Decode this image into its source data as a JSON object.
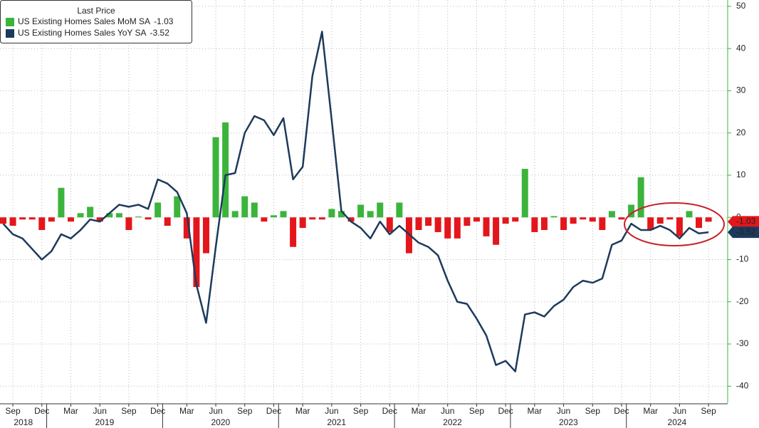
{
  "chart_data": {
    "type": "bar_line",
    "legend_title": "Last Price",
    "x": [
      "2018-08",
      "2018-09",
      "2018-10",
      "2018-11",
      "2018-12",
      "2019-01",
      "2019-02",
      "2019-03",
      "2019-04",
      "2019-05",
      "2019-06",
      "2019-07",
      "2019-08",
      "2019-09",
      "2019-10",
      "2019-11",
      "2019-12",
      "2020-01",
      "2020-02",
      "2020-03",
      "2020-04",
      "2020-05",
      "2020-06",
      "2020-07",
      "2020-08",
      "2020-09",
      "2020-10",
      "2020-11",
      "2020-12",
      "2021-01",
      "2021-02",
      "2021-03",
      "2021-04",
      "2021-05",
      "2021-06",
      "2021-07",
      "2021-08",
      "2021-09",
      "2021-10",
      "2021-11",
      "2021-12",
      "2022-01",
      "2022-02",
      "2022-03",
      "2022-04",
      "2022-05",
      "2022-06",
      "2022-07",
      "2022-08",
      "2022-09",
      "2022-10",
      "2022-11",
      "2022-12",
      "2023-01",
      "2023-02",
      "2023-03",
      "2023-04",
      "2023-05",
      "2023-06",
      "2023-07",
      "2023-08",
      "2023-09",
      "2023-10",
      "2023-11",
      "2023-12",
      "2024-01",
      "2024-02",
      "2024-03",
      "2024-04",
      "2024-05",
      "2024-06",
      "2024-07",
      "2024-08",
      "2024-09"
    ],
    "series": [
      {
        "name": "US Existing Homes Sales MoM SA",
        "kind": "bar",
        "color": "#3cb43c",
        "negative_color": "#e3171b",
        "values": [
          -1.5,
          -2,
          -0.5,
          -0.5,
          -3,
          -1,
          7,
          -1,
          1,
          2.5,
          -1,
          1,
          1,
          -3,
          0.2,
          -0.5,
          3.5,
          -2,
          5,
          -5,
          -16.5,
          -8.5,
          19,
          22.5,
          1.5,
          5,
          3.5,
          -1,
          0.5,
          1.5,
          -7,
          -2.5,
          -0.5,
          -0.5,
          2,
          1.5,
          -1,
          3,
          1.5,
          3.5,
          -3.5,
          3.5,
          -8.5,
          -3,
          -2,
          -3.5,
          -5,
          -5,
          -2,
          -1,
          -4.5,
          -6.5,
          -1.5,
          -1,
          11.5,
          -3.5,
          -3,
          0.3,
          -3,
          -1.5,
          -0.5,
          -1,
          -3,
          1.5,
          -0.5,
          3,
          9.5,
          -3,
          -1.5,
          -0.5,
          -4.5,
          1.5,
          -2.5,
          -1.03
        ]
      },
      {
        "name": "US Existing Homes Sales YoY SA",
        "kind": "line",
        "color": "#1d3a5c",
        "values": [
          -1.5,
          -4,
          -5,
          -7.5,
          -10,
          -8,
          -4,
          -5,
          -3,
          -0.5,
          -1,
          1,
          3,
          2.5,
          3,
          2,
          9,
          8,
          6,
          1,
          -16,
          -25,
          -7,
          10,
          10.5,
          20,
          24,
          23,
          19.5,
          23.5,
          9,
          12,
          33.5,
          44,
          23,
          1.5,
          -1,
          -2.5,
          -5,
          -1,
          -4,
          -2,
          -4,
          -6,
          -7,
          -9,
          -15,
          -20,
          -20.5,
          -24,
          -28,
          -35,
          -34,
          -36.5,
          -23,
          -22.5,
          -23.5,
          -21,
          -19.5,
          -16.5,
          -15,
          -15.5,
          -14.5,
          -6.5,
          -5.5,
          -1.5,
          -3,
          -3,
          -2,
          -3,
          -5,
          -2.5,
          -3.8,
          -3.52
        ]
      }
    ],
    "ylim": [
      -44,
      51.5
    ],
    "yticks": [
      50,
      40,
      30,
      20,
      10,
      0,
      -10,
      -20,
      -30,
      -40
    ],
    "xticks": [
      {
        "value": "2018-09",
        "label": "Sep"
      },
      {
        "value": "2018-12",
        "label": "Dec"
      },
      {
        "value": "2019-03",
        "label": "Mar"
      },
      {
        "value": "2019-06",
        "label": "Jun"
      },
      {
        "value": "2019-09",
        "label": "Sep"
      },
      {
        "value": "2019-12",
        "label": "Dec"
      },
      {
        "value": "2020-03",
        "label": "Mar"
      },
      {
        "value": "2020-06",
        "label": "Jun"
      },
      {
        "value": "2020-09",
        "label": "Sep"
      },
      {
        "value": "2020-12",
        "label": "Dec"
      },
      {
        "value": "2021-03",
        "label": "Mar"
      },
      {
        "value": "2021-06",
        "label": "Jun"
      },
      {
        "value": "2021-09",
        "label": "Sep"
      },
      {
        "value": "2021-12",
        "label": "Dec"
      },
      {
        "value": "2022-03",
        "label": "Mar"
      },
      {
        "value": "2022-06",
        "label": "Jun"
      },
      {
        "value": "2022-09",
        "label": "Sep"
      },
      {
        "value": "2022-12",
        "label": "Dec"
      },
      {
        "value": "2023-03",
        "label": "Mar"
      },
      {
        "value": "2023-06",
        "label": "Jun"
      },
      {
        "value": "2023-09",
        "label": "Sep"
      },
      {
        "value": "2023-12",
        "label": "Dec"
      },
      {
        "value": "2024-03",
        "label": "Mar"
      },
      {
        "value": "2024-06",
        "label": "Jun"
      },
      {
        "value": "2024-09",
        "label": "Sep"
      }
    ],
    "years": [
      "2018",
      "2019",
      "2020",
      "2021",
      "2022",
      "2023",
      "2024"
    ],
    "grid": true,
    "axis_side": "right",
    "axis_color": "#3cb43c"
  }
}
